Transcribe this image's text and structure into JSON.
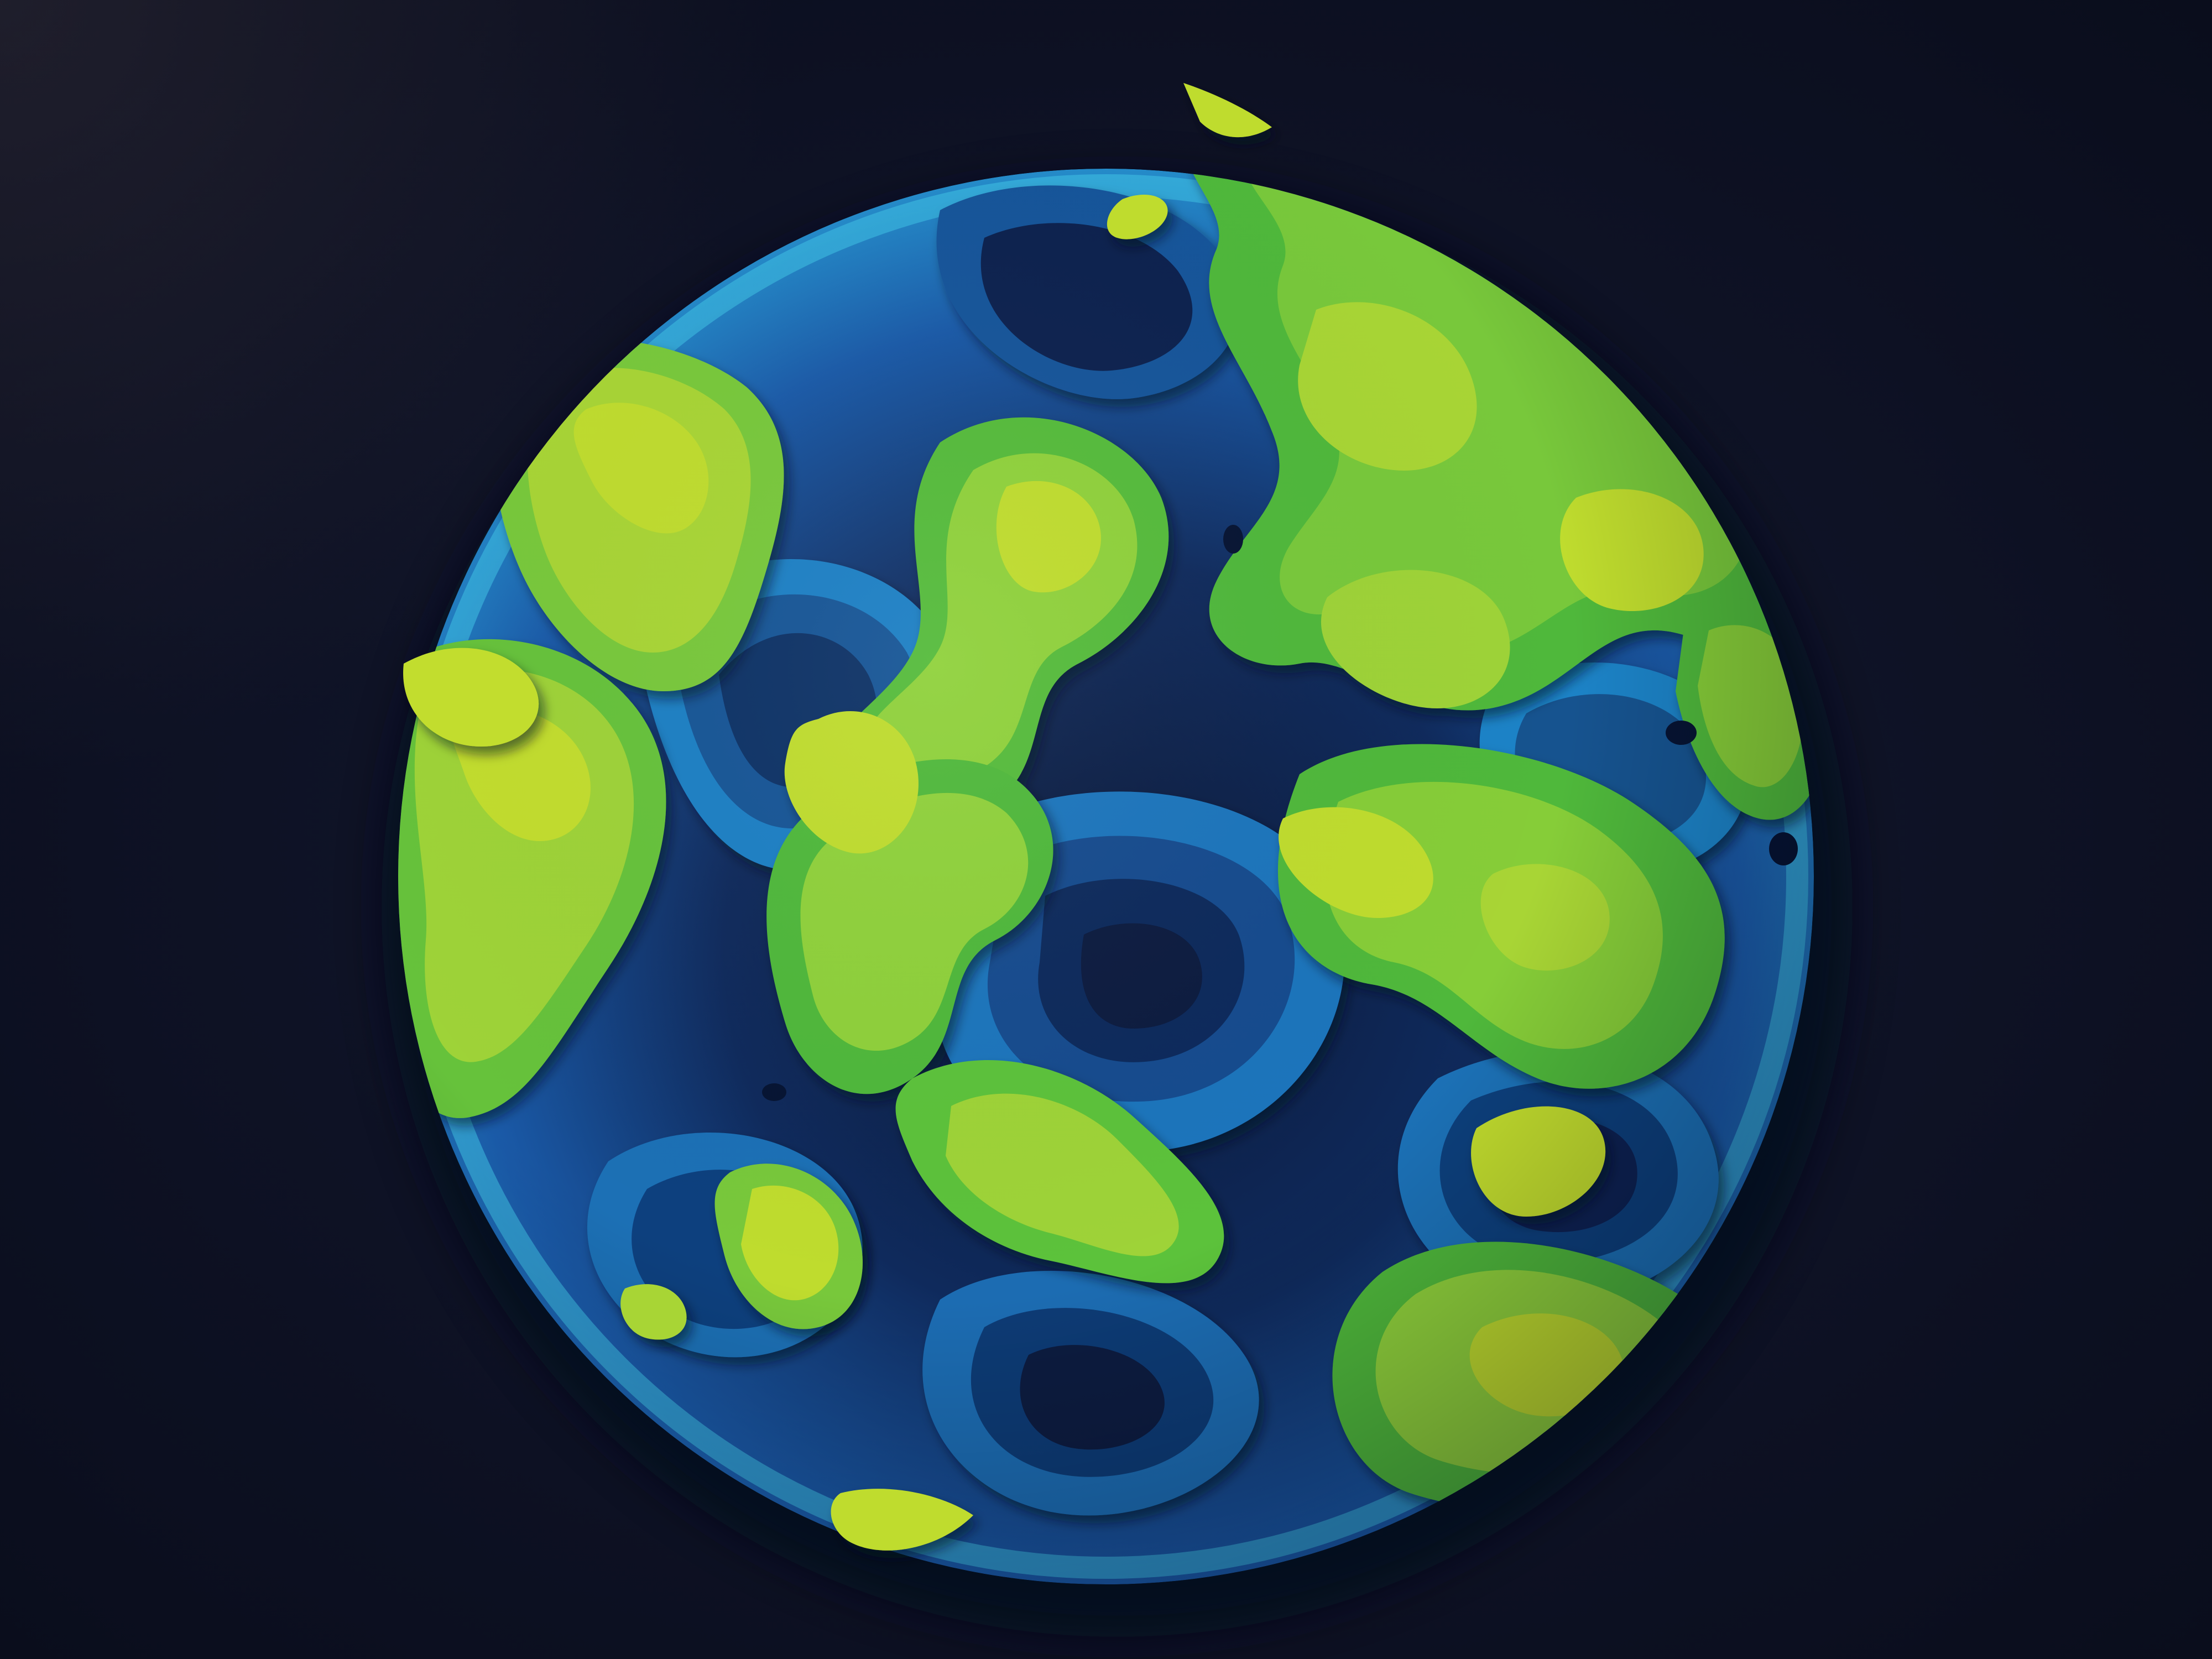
{
  "scene": {
    "subject": "topographic-globe",
    "palette": {
      "background": "#0e1225",
      "deep_navy": "#0a1a3d",
      "ocean_dark": "#12336e",
      "ocean_mid": "#1a67b3",
      "ocean_light": "#2d9fd6",
      "ocean_shallow": "#3fc3e6",
      "land_green": "#5cc23a",
      "land_lime": "#8fd13a",
      "land_yellow": "#bfdc2d"
    }
  }
}
